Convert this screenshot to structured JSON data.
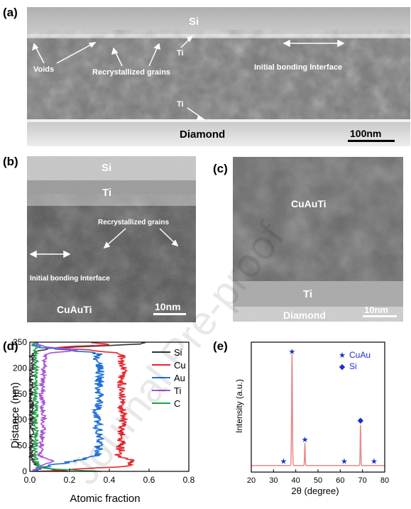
{
  "panels": {
    "a": {
      "label": "(a)",
      "si": "Si",
      "diamond": "Diamond",
      "voids": "Voids",
      "recrystallized": "Recrystallized grains",
      "ti_top": "Ti",
      "ti_bottom": "Ti",
      "interface": "Initial bonding Interface",
      "scale": "100nm"
    },
    "b": {
      "label": "(b)",
      "si": "Si",
      "ti": "Ti",
      "recrystallized": "Recrystallized grains",
      "interface": "Initial bonding Interface",
      "alloy": "CuAuTi",
      "scale": "10nm"
    },
    "c": {
      "label": "(c)",
      "alloy": "CuAuTi",
      "ti": "Ti",
      "diamond": "Diamond",
      "scale": "10nm"
    },
    "d": {
      "label": "(d)"
    },
    "e": {
      "label": "(e)"
    }
  },
  "watermark": "Journal Pre-proof",
  "chart_data": [
    {
      "type": "line",
      "panel": "d",
      "xlabel": "Atomic fraction",
      "ylabel": "Distance (nm)",
      "xlim": [
        0,
        0.8
      ],
      "ylim": [
        0,
        250
      ],
      "xticks": [
        "0.0",
        "0.2",
        "0.4",
        "0.6",
        "0.8"
      ],
      "yticks": [
        "0",
        "50",
        "100",
        "150",
        "200",
        "250"
      ],
      "legend_position": "top-right",
      "series": [
        {
          "name": "Si",
          "color": "#333333",
          "profile": [
            [
              0,
              0.18
            ],
            [
              5,
              0.1
            ],
            [
              10,
              0.04
            ],
            [
              20,
              0.02
            ],
            [
              30,
              0.01
            ],
            [
              225,
              0.01
            ],
            [
              232,
              0.03
            ],
            [
              238,
              0.1
            ],
            [
              242,
              0.3
            ],
            [
              246,
              0.55
            ],
            [
              250,
              0.6
            ]
          ]
        },
        {
          "name": "Cu",
          "color": "#e8262d",
          "profile": [
            [
              0,
              0.05
            ],
            [
              10,
              0.5
            ],
            [
              20,
              0.52
            ],
            [
              30,
              0.45
            ],
            [
              50,
              0.46
            ],
            [
              100,
              0.47
            ],
            [
              150,
              0.46
            ],
            [
              200,
              0.47
            ],
            [
              228,
              0.46
            ],
            [
              235,
              0.3
            ],
            [
              240,
              0.1
            ],
            [
              245,
              0.4
            ],
            [
              250,
              0.3
            ]
          ]
        },
        {
          "name": "Au",
          "color": "#1f6fd6",
          "profile": [
            [
              0,
              0.02
            ],
            [
              10,
              0.08
            ],
            [
              22,
              0.25
            ],
            [
              30,
              0.34
            ],
            [
              50,
              0.35
            ],
            [
              100,
              0.34
            ],
            [
              150,
              0.35
            ],
            [
              200,
              0.35
            ],
            [
              228,
              0.34
            ],
            [
              235,
              0.2
            ],
            [
              240,
              0.05
            ],
            [
              245,
              0.02
            ],
            [
              250,
              0.02
            ]
          ]
        },
        {
          "name": "Ti",
          "color": "#a64fd6",
          "profile": [
            [
              0,
              0.02
            ],
            [
              10,
              0.05
            ],
            [
              20,
              0.12
            ],
            [
              30,
              0.05
            ],
            [
              50,
              0.06
            ],
            [
              100,
              0.07
            ],
            [
              150,
              0.06
            ],
            [
              200,
              0.07
            ],
            [
              228,
              0.08
            ],
            [
              235,
              0.25
            ],
            [
              240,
              0.1
            ],
            [
              245,
              0.05
            ],
            [
              250,
              0.03
            ]
          ]
        },
        {
          "name": "C",
          "color": "#1fa34a",
          "profile": [
            [
              0,
              0.35
            ],
            [
              5,
              0.1
            ],
            [
              10,
              0.04
            ],
            [
              20,
              0.03
            ],
            [
              30,
              0.03
            ],
            [
              100,
              0.03
            ],
            [
              200,
              0.03
            ],
            [
              235,
              0.03
            ],
            [
              240,
              0.03
            ],
            [
              245,
              0.02
            ],
            [
              250,
              0.02
            ]
          ]
        }
      ]
    },
    {
      "type": "line",
      "panel": "e",
      "xlabel": "2θ (degree)",
      "ylabel": "Intensity (a.u.)",
      "xlim": [
        20,
        80
      ],
      "xticks": [
        "20",
        "30",
        "40",
        "50",
        "60",
        "70",
        "80"
      ],
      "legend_position": "top-right",
      "legend": [
        {
          "marker": "★",
          "label": "CuAu"
        },
        {
          "marker": "◆",
          "label": "Si"
        }
      ],
      "line_color": "#e88a8a",
      "marker_color": "#1a2fcf",
      "baseline": 0.02,
      "peaks": [
        {
          "x": 38.3,
          "height": 0.98,
          "width": 0.25
        },
        {
          "x": 44.1,
          "height": 0.2,
          "width": 0.2
        },
        {
          "x": 69.1,
          "height": 0.36,
          "width": 0.2
        }
      ],
      "markers": [
        {
          "x": 34.5,
          "y": 0.06,
          "shape": "★"
        },
        {
          "x": 38.3,
          "y": 1.02,
          "shape": "★"
        },
        {
          "x": 44.1,
          "y": 0.25,
          "shape": "★"
        },
        {
          "x": 61.8,
          "y": 0.06,
          "shape": "★"
        },
        {
          "x": 69.1,
          "y": 0.42,
          "shape": "◆"
        },
        {
          "x": 75.2,
          "y": 0.06,
          "shape": "★"
        }
      ]
    }
  ]
}
